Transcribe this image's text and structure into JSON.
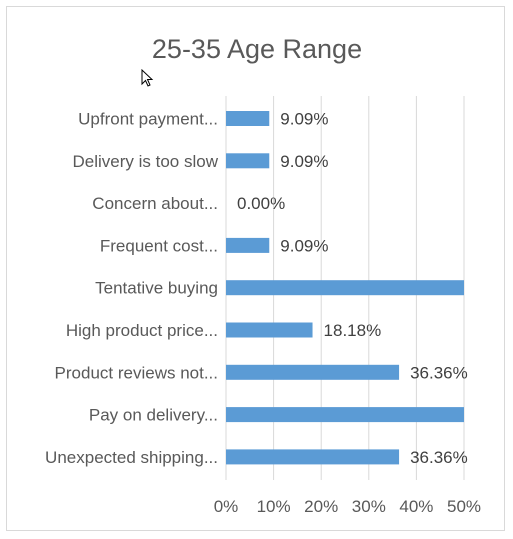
{
  "chart_data": {
    "type": "bar",
    "orientation": "horizontal",
    "title": "25-35 Age Range",
    "categories": [
      "Upfront payment...",
      "Delivery is too slow",
      "Concern about...",
      "Frequent cost...",
      "Tentative buying",
      "High product price...",
      "Product reviews not...",
      "Pay on delivery...",
      "Unexpected shipping..."
    ],
    "values": [
      9.09,
      9.09,
      0.0,
      9.09,
      50.0,
      18.18,
      36.36,
      50.0,
      36.36
    ],
    "data_labels": [
      "9.09%",
      "9.09%",
      "0.00%",
      "9.09%",
      "",
      "18.18%",
      "36.36%",
      "",
      "36.36%"
    ],
    "x_ticks": [
      "0%",
      "10%",
      "20%",
      "30%",
      "40%",
      "50%"
    ],
    "xlim": [
      0,
      50
    ],
    "grid": true,
    "legend": "none",
    "bar_color": "#5b9bd5"
  }
}
